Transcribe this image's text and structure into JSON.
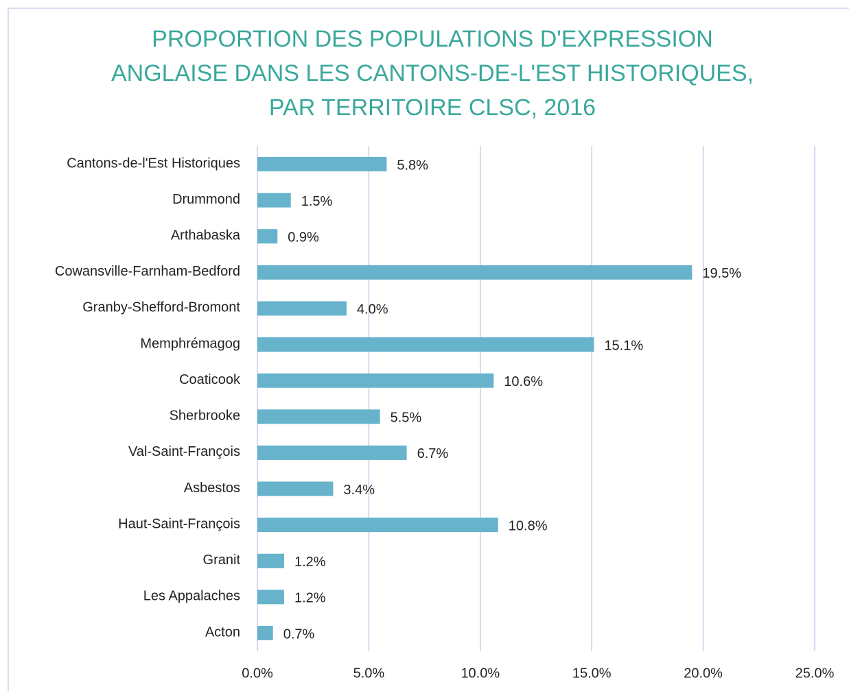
{
  "chart_data": {
    "type": "bar",
    "orientation": "horizontal",
    "title": [
      "PROPORTION DES POPULATIONS D'EXPRESSION",
      "ANGLAISE DANS LES CANTONS-DE-L'EST HISTORIQUES,",
      "PAR TERRITOIRE CLSC, 2016"
    ],
    "categories": [
      "Cantons-de-l'Est Historiques",
      "Drummond",
      "Arthabaska",
      "Cowansville-Farnham-Bedford",
      "Granby-Shefford-Bromont",
      "Memphrémagog",
      "Coaticook",
      "Sherbrooke",
      "Val-Saint-François",
      "Asbestos",
      "Haut-Saint-François",
      "Granit",
      "Les Appalaches",
      "Acton"
    ],
    "values": [
      5.8,
      1.5,
      0.9,
      19.5,
      4.0,
      15.1,
      10.6,
      5.5,
      6.7,
      3.4,
      10.8,
      1.2,
      1.2,
      0.7
    ],
    "value_labels": [
      "5.8%",
      "1.5%",
      "0.9%",
      "19.5%",
      "4.0%",
      "15.1%",
      "10.6%",
      "5.5%",
      "6.7%",
      "3.4%",
      "10.8%",
      "1.2%",
      "1.2%",
      "0.7%"
    ],
    "color": "#67b3cc",
    "xlim": [
      0,
      25
    ],
    "xticks": [
      {
        "value": 0,
        "label": "0.0%"
      },
      {
        "value": 5,
        "label": "5.0%"
      },
      {
        "value": 10,
        "label": "10.0%"
      },
      {
        "value": 15,
        "label": "15.0%"
      },
      {
        "value": 20,
        "label": "20.0%"
      },
      {
        "value": 25,
        "label": "25.0%"
      }
    ],
    "grid": true
  }
}
